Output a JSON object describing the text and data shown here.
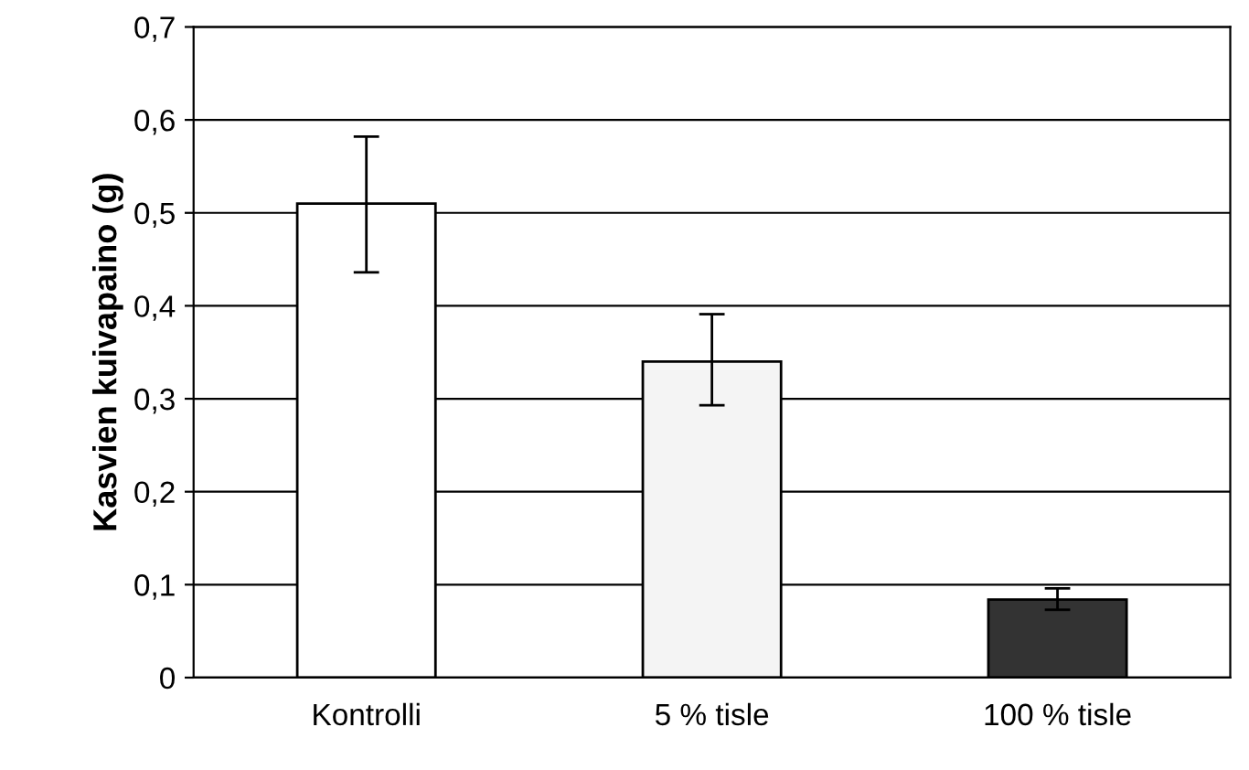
{
  "chart_data": {
    "type": "bar",
    "ylabel": "Kasvien kuivapaino (g)",
    "categories": [
      "Kontrolli",
      "5 % tisle",
      "100 % tisle"
    ],
    "values": [
      0.51,
      0.34,
      0.084
    ],
    "colors": [
      "#ffffff",
      "#f4f4f4",
      "#333333"
    ],
    "errors": [
      [
        0.436,
        0.582
      ],
      [
        0.293,
        0.391
      ],
      [
        0.073,
        0.096
      ]
    ],
    "ylim": [
      0,
      0.7
    ],
    "yticks": [
      {
        "value": 0,
        "label": "0"
      },
      {
        "value": 0.1,
        "label": "0,1"
      },
      {
        "value": 0.2,
        "label": "0,2"
      },
      {
        "value": 0.3,
        "label": "0,3"
      },
      {
        "value": 0.4,
        "label": "0,4"
      },
      {
        "value": 0.5,
        "label": "0,5"
      },
      {
        "value": 0.6,
        "label": "0,6"
      },
      {
        "value": 0.7,
        "label": "0,7"
      }
    ],
    "grid": "y"
  }
}
